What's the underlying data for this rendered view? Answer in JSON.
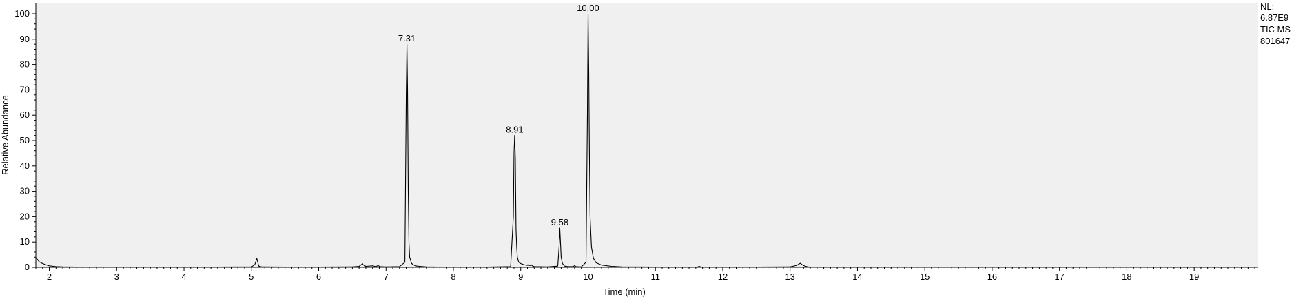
{
  "chart_data": {
    "type": "line",
    "title": "",
    "xlabel": "Time (min)",
    "ylabel": "Relative Abundance",
    "xlim": [
      1.8,
      19.95
    ],
    "ylim": [
      0,
      100
    ],
    "x_ticks": [
      2,
      3,
      4,
      5,
      6,
      7,
      8,
      9,
      10,
      11,
      12,
      13,
      14,
      15,
      16,
      17,
      18,
      19
    ],
    "x_tick_labels": [
      "2",
      "3",
      "4",
      "5",
      "6",
      "7",
      "8",
      "9",
      "10",
      "11",
      "12",
      "13",
      "14",
      "15",
      "16",
      "17",
      "18",
      "19"
    ],
    "y_ticks": [
      0,
      10,
      20,
      30,
      40,
      50,
      60,
      70,
      80,
      90,
      100
    ],
    "y_tick_labels": [
      "0",
      "10",
      "20",
      "30",
      "40",
      "50",
      "60",
      "70",
      "80",
      "90",
      "100"
    ],
    "grid": false,
    "colors": {
      "trace": "#000000",
      "plot_background": "#f0f0f0",
      "axis": "#000000"
    },
    "info_lines": [
      "NL:",
      "6.87E9",
      "TIC MS",
      "801647"
    ],
    "peaks": [
      {
        "rt": 7.31,
        "height": 88,
        "label": "7.31"
      },
      {
        "rt": 8.91,
        "height": 52,
        "label": "8.91"
      },
      {
        "rt": 9.58,
        "height": 15.5,
        "label": "9.58"
      },
      {
        "rt": 10.0,
        "height": 100,
        "label": "10.00"
      }
    ],
    "series": [
      {
        "x": [
          1.8,
          1.82,
          1.85,
          1.9,
          1.95,
          2.0,
          2.1,
          2.2,
          2.4,
          2.6,
          3.0,
          3.5,
          4.0,
          4.5,
          5.0,
          5.05,
          5.07,
          5.08,
          5.09,
          5.11,
          5.15,
          5.5,
          6.0,
          6.5,
          6.6,
          6.64,
          6.65,
          6.66,
          6.7,
          6.8,
          6.85,
          6.88,
          6.91,
          7.0,
          7.2,
          7.28,
          7.3,
          7.31,
          7.32,
          7.33,
          7.34,
          7.35,
          7.38,
          7.42,
          7.46,
          7.5,
          7.6,
          7.8,
          8.0,
          8.5,
          8.85,
          8.89,
          8.9,
          8.91,
          8.92,
          8.93,
          8.94,
          8.95,
          8.97,
          9.0,
          9.05,
          9.1,
          9.11,
          9.12,
          9.15,
          9.16,
          9.17,
          9.2,
          9.4,
          9.55,
          9.57,
          9.58,
          9.59,
          9.6,
          9.62,
          9.65,
          9.7,
          9.78,
          9.8,
          9.82,
          9.9,
          9.97,
          9.99,
          10.0,
          10.01,
          10.02,
          10.03,
          10.05,
          10.08,
          10.12,
          10.2,
          10.35,
          10.5,
          11.0,
          11.5,
          11.62,
          11.65,
          11.68,
          12.0,
          12.5,
          13.0,
          13.1,
          13.15,
          13.18,
          13.22,
          13.26,
          13.3,
          13.5,
          14.0,
          15.0,
          16.0,
          17.0,
          18.0,
          19.0,
          19.95
        ],
        "y": [
          3.8,
          3.2,
          2.2,
          1.5,
          1.0,
          0.6,
          0.3,
          0.2,
          0.1,
          0.1,
          0.1,
          0.1,
          0.1,
          0.1,
          0.2,
          1.0,
          2.5,
          3.6,
          2.5,
          0.5,
          0.2,
          0.1,
          0.1,
          0.2,
          0.4,
          1.2,
          1.5,
          1.0,
          0.4,
          0.6,
          0.3,
          0.7,
          0.3,
          0.2,
          0.3,
          2.0,
          68,
          88,
          70,
          30,
          10,
          4,
          1.5,
          0.8,
          0.5,
          0.4,
          0.2,
          0.1,
          0.1,
          0.1,
          0.3,
          20,
          45,
          52,
          43,
          15,
          8,
          4,
          2,
          1.5,
          1.0,
          0.8,
          1.2,
          0.8,
          0.7,
          1.0,
          0.6,
          0.3,
          0.2,
          0.5,
          8,
          15.5,
          10,
          4,
          1.5,
          0.5,
          0.3,
          0.3,
          0.7,
          0.3,
          0.2,
          2,
          60,
          100,
          77,
          45,
          20,
          8,
          3.5,
          1.8,
          0.9,
          0.4,
          0.2,
          0.1,
          0.1,
          0.1,
          0.4,
          0.1,
          0.1,
          0.1,
          0.2,
          0.8,
          1.6,
          1.0,
          0.5,
          0.2,
          0.1,
          0.1,
          0.1,
          0.1,
          0.1,
          0.1,
          0.1,
          0.1,
          0.1
        ]
      }
    ]
  }
}
